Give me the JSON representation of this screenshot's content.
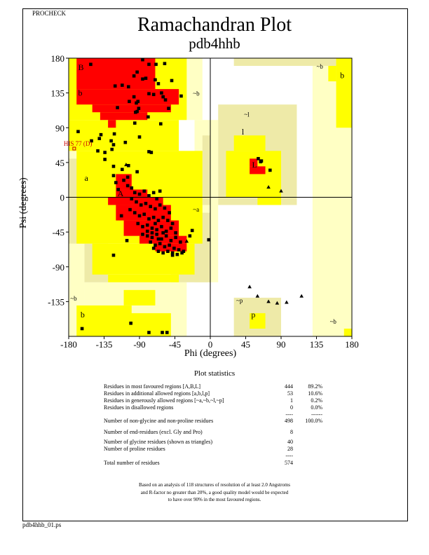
{
  "header": {
    "program": "PROCHECK"
  },
  "footer": {
    "filename": "pdb4hhb_01.ps"
  },
  "chart_data": {
    "type": "scatter",
    "title": "Ramachandran Plot",
    "subtitle": "pdb4hhb",
    "xlabel": "Phi (degrees)",
    "ylabel": "Psi (degrees)",
    "xlim": [
      -180,
      180
    ],
    "ylim": [
      -180,
      180
    ],
    "xticks": [
      "-180",
      "-135",
      "-90",
      "-45",
      "0",
      "45",
      "90",
      "135",
      "180"
    ],
    "yticks": [
      "180",
      "135",
      "90",
      "45",
      "0",
      "-45",
      "-90",
      "-135"
    ],
    "zero_lines": true,
    "colors": {
      "most_favoured": "#ff0000",
      "additional_allowed": "#ffff00",
      "generously_allowed": "#eeeaa8",
      "generously_allowed_pale": "#ffffc4",
      "disallowed": "#ffffff",
      "points": "#000000",
      "labeled_residue": "#cc0000"
    },
    "regions": {
      "generously_allowed_pale": [
        [
          -180,
          -10,
          100,
          180
        ],
        [
          -180,
          -160,
          -180,
          180
        ],
        [
          -160,
          -30,
          -180,
          -110
        ],
        [
          -20,
          10,
          -110,
          100
        ],
        [
          130,
          180,
          -180,
          180
        ]
      ],
      "generously_allowed": [
        [
          -180,
          -160,
          -60,
          50
        ],
        [
          -160,
          -130,
          -110,
          -60
        ],
        [
          -50,
          0,
          -110,
          -20
        ],
        [
          10,
          110,
          -10,
          120
        ],
        [
          -10,
          0,
          -10,
          80
        ],
        [
          30,
          90,
          -180,
          -130
        ],
        [
          30,
          180,
          170,
          180
        ]
      ],
      "additional_allowed": [
        [
          -180,
          -30,
          100,
          180
        ],
        [
          -180,
          -40,
          60,
          100
        ],
        [
          -170,
          -10,
          -60,
          60
        ],
        [
          -150,
          -20,
          -100,
          -60
        ],
        [
          -130,
          -40,
          -110,
          -100
        ],
        [
          -170,
          -100,
          -180,
          -140
        ],
        [
          -130,
          -50,
          -180,
          -150
        ],
        [
          -110,
          -70,
          -140,
          -120
        ],
        [
          30,
          70,
          60,
          80
        ],
        [
          20,
          90,
          0,
          60
        ],
        [
          60,
          90,
          -10,
          0
        ],
        [
          50,
          70,
          -170,
          -150
        ],
        [
          160,
          180,
          90,
          180
        ],
        [
          150,
          160,
          150,
          170
        ],
        [
          170,
          180,
          -180,
          -170
        ]
      ],
      "most_favoured": [
        [
          -170,
          -70,
          140,
          180
        ],
        [
          -170,
          -40,
          120,
          140
        ],
        [
          -150,
          -50,
          110,
          120
        ],
        [
          -140,
          -80,
          100,
          110
        ],
        [
          -130,
          -120,
          90,
          100
        ],
        [
          -120,
          -100,
          10,
          30
        ],
        [
          -120,
          -80,
          0,
          10
        ],
        [
          -130,
          -60,
          -10,
          0
        ],
        [
          -120,
          -50,
          -30,
          -10
        ],
        [
          -110,
          -40,
          -50,
          -30
        ],
        [
          -90,
          -30,
          -60,
          -50
        ],
        [
          -70,
          -30,
          -70,
          -60
        ],
        [
          50,
          70,
          30,
          40
        ],
        [
          50,
          60,
          40,
          50
        ]
      ]
    },
    "region_labels": [
      {
        "text": "B",
        "phi": -168,
        "psi": 168
      },
      {
        "text": "b",
        "phi": -168,
        "psi": 135
      },
      {
        "text": "a",
        "phi": -160,
        "psi": 25
      },
      {
        "text": "A",
        "phi": -118,
        "psi": 5
      },
      {
        "text": "~b",
        "phi": -22,
        "psi": 135
      },
      {
        "text": "~l",
        "phi": 43,
        "psi": 108
      },
      {
        "text": "l",
        "phi": 40,
        "psi": 85
      },
      {
        "text": "L",
        "phi": 53,
        "psi": 42
      },
      {
        "text": "~a",
        "phi": -22,
        "psi": -15
      },
      {
        "text": "~b",
        "phi": 135,
        "psi": 170
      },
      {
        "text": "b",
        "phi": 165,
        "psi": 158
      },
      {
        "text": "~p",
        "phi": 33,
        "psi": -133
      },
      {
        "text": "p",
        "phi": 52,
        "psi": -152
      },
      {
        "text": "~b",
        "phi": -178,
        "psi": -130
      },
      {
        "text": "b",
        "phi": -165,
        "psi": -152
      },
      {
        "text": "~b",
        "phi": 152,
        "psi": -160
      }
    ],
    "labeled_residues": [
      {
        "label": "HIS 77 (D)",
        "phi": -173,
        "psi": 63
      }
    ],
    "residues": [
      [
        -152,
        172
      ],
      [
        -86,
        178
      ],
      [
        -78,
        172
      ],
      [
        -69,
        172
      ],
      [
        -58,
        173
      ],
      [
        -93,
        162
      ],
      [
        -97,
        157
      ],
      [
        -86,
        153
      ],
      [
        -82,
        154
      ],
      [
        -70,
        152
      ],
      [
        -66,
        147
      ],
      [
        -49,
        151
      ],
      [
        -112,
        145
      ],
      [
        -121,
        144
      ],
      [
        -104,
        143
      ],
      [
        -78,
        134
      ],
      [
        -72,
        133
      ],
      [
        -62,
        135
      ],
      [
        -60,
        130
      ],
      [
        -57,
        126
      ],
      [
        -37,
        131
      ],
      [
        -97,
        130
      ],
      [
        -94,
        122
      ],
      [
        -92,
        124
      ],
      [
        -103,
        124
      ],
      [
        -118,
        116
      ],
      [
        -91,
        115
      ],
      [
        -95,
        110
      ],
      [
        -93,
        111
      ],
      [
        -53,
        115
      ],
      [
        -79,
        104
      ],
      [
        -96,
        96
      ],
      [
        -63,
        95
      ],
      [
        -168,
        85
      ],
      [
        -139,
        81
      ],
      [
        -122,
        82
      ],
      [
        -141,
        76
      ],
      [
        -151,
        73
      ],
      [
        -126,
        73
      ],
      [
        -90,
        78
      ],
      [
        -108,
        71
      ],
      [
        -123,
        68
      ],
      [
        -143,
        60
      ],
      [
        -134,
        58
      ],
      [
        -125,
        62
      ],
      [
        -78,
        59
      ],
      [
        -75,
        58
      ],
      [
        -134,
        49
      ],
      [
        -123,
        40
      ],
      [
        -104,
        41
      ],
      [
        -112,
        36
      ],
      [
        -93,
        33
      ],
      [
        -123,
        28
      ],
      [
        -64,
        8
      ],
      [
        -120,
        19
      ],
      [
        -105,
        26
      ],
      [
        -117,
        10
      ],
      [
        -110,
        22
      ],
      [
        -105,
        15
      ],
      [
        -100,
        12
      ],
      [
        -96,
        6
      ],
      [
        -90,
        4
      ],
      [
        -84,
        8
      ],
      [
        -78,
        2
      ],
      [
        -72,
        6
      ],
      [
        -68,
        -2
      ],
      [
        -100,
        -2
      ],
      [
        -94,
        -6
      ],
      [
        -88,
        -10
      ],
      [
        -82,
        -8
      ],
      [
        -76,
        -12
      ],
      [
        -70,
        -15
      ],
      [
        -64,
        -10
      ],
      [
        -58,
        -14
      ],
      [
        -52,
        -20
      ],
      [
        -102,
        -16
      ],
      [
        -96,
        -20
      ],
      [
        -90,
        -24
      ],
      [
        -84,
        -22
      ],
      [
        -78,
        -28
      ],
      [
        -72,
        -26
      ],
      [
        -66,
        -30
      ],
      [
        -60,
        -26
      ],
      [
        -54,
        -30
      ],
      [
        -48,
        -34
      ],
      [
        -92,
        -34
      ],
      [
        -86,
        -38
      ],
      [
        -80,
        -36
      ],
      [
        -74,
        -40
      ],
      [
        -68,
        -42
      ],
      [
        -62,
        -38
      ],
      [
        -56,
        -44
      ],
      [
        -50,
        -40
      ],
      [
        -44,
        -46
      ],
      [
        -86,
        -48
      ],
      [
        -80,
        -50
      ],
      [
        -74,
        -52
      ],
      [
        -68,
        -48
      ],
      [
        -62,
        -54
      ],
      [
        -56,
        -50
      ],
      [
        -50,
        -56
      ],
      [
        -44,
        -52
      ],
      [
        -38,
        -58
      ],
      [
        -76,
        -58
      ],
      [
        -70,
        -62
      ],
      [
        -64,
        -60
      ],
      [
        -58,
        -64
      ],
      [
        -52,
        -62
      ],
      [
        -46,
        -66
      ],
      [
        -40,
        -68
      ],
      [
        -34,
        -70
      ],
      [
        -72,
        -66
      ],
      [
        -66,
        -70
      ],
      [
        -60,
        -72
      ],
      [
        -54,
        -70
      ],
      [
        -48,
        -72
      ],
      [
        -42,
        -74
      ],
      [
        -36,
        -72
      ],
      [
        -80,
        -44
      ],
      [
        -70,
        -34
      ],
      [
        -60,
        -46
      ],
      [
        -66,
        -54
      ],
      [
        -74,
        -46
      ],
      [
        -113,
        -24
      ],
      [
        -106,
        -56
      ],
      [
        -123,
        -75
      ],
      [
        -23,
        -43
      ],
      [
        -26,
        -50
      ],
      [
        -2,
        -55
      ],
      [
        -48,
        -75
      ],
      [
        -101,
        -163
      ],
      [
        -163,
        -170
      ],
      [
        -78,
        -175
      ],
      [
        -61,
        -175
      ],
      [
        -55,
        -175
      ],
      [
        61,
        50
      ],
      [
        64,
        46
      ],
      [
        65,
        47
      ],
      [
        76,
        35
      ]
    ],
    "glycines": [
      [
        74,
        13
      ],
      [
        90,
        8
      ],
      [
        50,
        -116
      ],
      [
        60,
        -128
      ],
      [
        74,
        -135
      ],
      [
        85,
        -137
      ],
      [
        97,
        -136
      ],
      [
        116,
        -128
      ],
      [
        -107,
        42
      ],
      [
        -30,
        -57
      ]
    ]
  },
  "statistics": {
    "title": "Plot statistics",
    "rows": [
      {
        "label": "Residues in most favoured regions  [A,B,L]",
        "count": "444",
        "percent": "89.2%"
      },
      {
        "label": "Residues in additional allowed regions  [a,b,l,p]",
        "count": "53",
        "percent": "10.6%"
      },
      {
        "label": "Residues in generously allowed regions  [~a,~b,~l,~p]",
        "count": "1",
        "percent": "0.2%"
      },
      {
        "label": "Residues in disallowed regions",
        "count": "0",
        "percent": "0.0%"
      },
      {
        "label": "",
        "count": "----",
        "percent": "------"
      },
      {
        "label": "Number of non-glycine and non-proline residues",
        "count": "498",
        "percent": "100.0%"
      },
      {
        "label": "Number of end-residues (excl. Gly and Pro)",
        "count": "8",
        "percent": ""
      },
      {
        "label": "Number of glycine residues (shown as triangles)",
        "count": "40",
        "percent": ""
      },
      {
        "label": "Number of proline residues",
        "count": "28",
        "percent": ""
      },
      {
        "label": "",
        "count": "----",
        "percent": ""
      },
      {
        "label": "Total number of residues",
        "count": "574",
        "percent": ""
      }
    ],
    "footnote": [
      "Based on an analysis of 118 structures of resolution of at least 2.0 Angstroms",
      "and R-factor no greater than 20%, a good quality model would be expected",
      "to have over 90% in the most favoured regions."
    ]
  }
}
